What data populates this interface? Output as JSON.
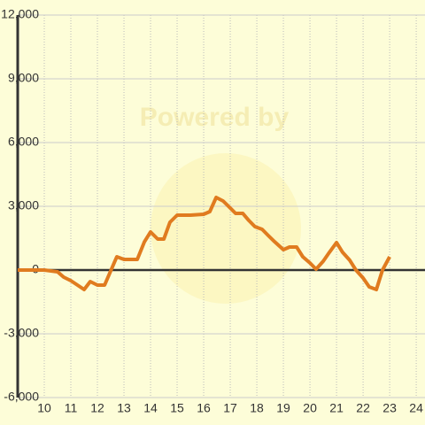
{
  "chart_data": {
    "type": "line",
    "watermark": "Powered by",
    "xlim": [
      9,
      24.33
    ],
    "xticks": [
      10,
      11,
      12,
      13,
      14,
      15,
      16,
      17,
      18,
      19,
      20,
      21,
      22,
      23,
      24
    ],
    "ylim": [
      -6000,
      12000
    ],
    "yticks": [
      {
        "value": -6000,
        "label": "-6,000"
      },
      {
        "value": -3000,
        "label": "-3,000"
      },
      0,
      {
        "value": 3000,
        "label": "3,000"
      },
      {
        "value": 6000,
        "label": "6,000"
      },
      {
        "value": 9000,
        "label": "9,000"
      },
      {
        "value": 12000,
        "label": "12,000"
      }
    ],
    "grid": true,
    "x": [
      9.0,
      10.0,
      10.5,
      10.73,
      11.0,
      11.5,
      11.73,
      12.0,
      12.27,
      12.73,
      13.0,
      13.5,
      13.77,
      14.0,
      14.27,
      14.5,
      14.73,
      15.0,
      15.5,
      16.0,
      16.23,
      16.47,
      16.73,
      16.97,
      17.2,
      17.47,
      17.7,
      17.93,
      18.2,
      18.43,
      18.67,
      19.0,
      19.23,
      19.5,
      19.73,
      20.0,
      20.23,
      20.5,
      20.73,
      21.0,
      21.23,
      21.5,
      21.73,
      22.0,
      22.23,
      22.5,
      22.73,
      23.0
    ],
    "series": [
      {
        "color": "#e07b1f",
        "values": [
          0,
          0,
          -83,
          -333,
          -500,
          -917,
          -542,
          -708,
          -708,
          625,
          500,
          500,
          1333,
          1792,
          1458,
          1458,
          2250,
          2583,
          2583,
          2625,
          2750,
          3417,
          3250,
          2958,
          2667,
          2667,
          2333,
          2042,
          1917,
          1625,
          1333,
          958,
          1083,
          1083,
          625,
          333,
          42,
          417,
          833,
          1292,
          833,
          458,
          0,
          -375,
          -792,
          -917,
          0,
          625
        ]
      }
    ]
  }
}
